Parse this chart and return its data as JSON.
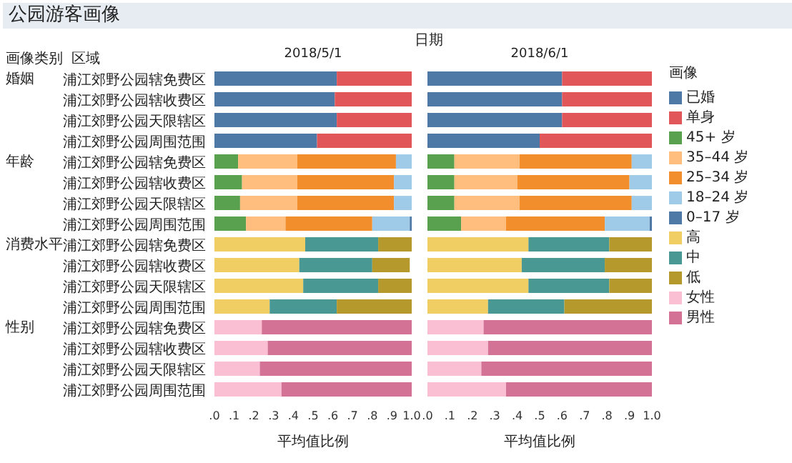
{
  "chart_data": [
    {
      "type": "bar",
      "orientation": "horizontal",
      "stacked": true,
      "title": "公园游客画像",
      "subtitle": "2018/5/1",
      "xlabel": "平均值比例",
      "annotations": [
        "日期",
        "画像类别",
        "区域",
        "婚姻",
        "年龄",
        "消费水平",
        "性别"
      ],
      "categories": [
        "浦江郊野公园辖免费区",
        "浦江郊野公园辖收费区",
        "浦江郊野公园天限辖区",
        "浦江郊野公园周围范围",
        "浦江郊野公园辖免费区",
        "浦江郊野公园辖收费区",
        "浦江郊野公园天限辖区",
        "浦江郊野公园周围范围",
        "浦江郊野公园辖免费区",
        "浦江郊野公园辖收费区",
        "浦江郊野公园天限辖区",
        "浦江郊野公园周围范围",
        "浦江郊野公园辖免费区",
        "浦江郊野公园辖收费区",
        "浦江郊野公园天限辖区",
        "浦江郊野公园周围范围"
      ],
      "xlim": [
        0,
        1
      ],
      "xticks": [
        {
          "value": 0,
          "label": ".0"
        },
        {
          "value": 0.1,
          "label": ".1"
        },
        {
          "value": 0.2,
          "label": ".2"
        },
        {
          "value": 0.3,
          "label": ".3"
        },
        {
          "value": 0.4,
          "label": ".4"
        },
        {
          "value": 0.5,
          "label": ".5"
        },
        {
          "value": 0.6,
          "label": ".6"
        },
        {
          "value": 0.7,
          "label": ".7"
        },
        {
          "value": 0.8,
          "label": ".8"
        },
        {
          "value": 0.9,
          "label": ".9"
        },
        {
          "value": 1,
          "label": "1.0"
        }
      ],
      "series": [
        {
          "color": "#4e79a7",
          "values": [
            0.62,
            0.61,
            0.62,
            0.52,
            null,
            null,
            null,
            null,
            null,
            null,
            null,
            null,
            null,
            null,
            null,
            null
          ]
        },
        {
          "color": "#e15759",
          "values": [
            0.38,
            0.39,
            0.38,
            0.48,
            null,
            null,
            null,
            null,
            null,
            null,
            null,
            null,
            null,
            null,
            null,
            null
          ]
        },
        {
          "color": "#59a14f",
          "values": [
            null,
            null,
            null,
            null,
            0.12,
            0.14,
            0.13,
            0.16,
            null,
            null,
            null,
            null,
            null,
            null,
            null,
            null
          ]
        },
        {
          "color": "#ffbe7d",
          "values": [
            null,
            null,
            null,
            null,
            0.3,
            0.28,
            0.29,
            0.2,
            null,
            null,
            null,
            null,
            null,
            null,
            null,
            null
          ]
        },
        {
          "color": "#f28e2b",
          "values": [
            null,
            null,
            null,
            null,
            0.5,
            0.49,
            0.49,
            0.44,
            null,
            null,
            null,
            null,
            null,
            null,
            null,
            null
          ]
        },
        {
          "color": "#a0cbe8",
          "values": [
            null,
            null,
            null,
            null,
            0.08,
            0.09,
            0.09,
            0.19,
            null,
            null,
            null,
            null,
            null,
            null,
            null,
            null
          ]
        },
        {
          "color": "#4e79a7",
          "values": [
            null,
            null,
            null,
            null,
            null,
            null,
            null,
            0.01,
            null,
            null,
            null,
            null,
            null,
            null,
            null,
            null
          ]
        },
        {
          "color": "#f1ce63",
          "values": [
            null,
            null,
            null,
            null,
            null,
            null,
            null,
            null,
            0.46,
            0.43,
            0.45,
            0.28,
            null,
            null,
            null,
            null
          ]
        },
        {
          "color": "#499894",
          "values": [
            null,
            null,
            null,
            null,
            null,
            null,
            null,
            null,
            0.37,
            0.37,
            0.38,
            0.34,
            null,
            null,
            null,
            null
          ]
        },
        {
          "color": "#b6992d",
          "values": [
            null,
            null,
            null,
            null,
            null,
            null,
            null,
            null,
            0.17,
            0.19,
            0.17,
            0.38,
            null,
            null,
            null,
            null
          ]
        },
        {
          "color": "#fabfd2",
          "values": [
            null,
            null,
            null,
            null,
            null,
            null,
            null,
            null,
            null,
            null,
            null,
            null,
            0.24,
            0.27,
            0.23,
            0.34
          ]
        },
        {
          "color": "#d37295",
          "values": [
            null,
            null,
            null,
            null,
            null,
            null,
            null,
            null,
            null,
            null,
            null,
            null,
            0.76,
            0.73,
            0.77,
            0.66
          ]
        }
      ]
    },
    {
      "type": "bar",
      "orientation": "horizontal",
      "stacked": true,
      "subtitle": "2018/6/1",
      "xlabel": "平均值比例",
      "tick_labels": "x",
      "legend": "right",
      "legend_title": "画像",
      "categories": [
        null,
        null,
        null,
        null,
        null,
        null,
        null,
        null,
        null,
        null,
        null,
        null,
        null,
        null,
        null,
        null
      ],
      "xlim": [
        0,
        1
      ],
      "xticks": [
        {
          "value": 0,
          "label": ".0"
        },
        {
          "value": 0.1,
          "label": ".1"
        },
        {
          "value": 0.2,
          "label": ".2"
        },
        {
          "value": 0.3,
          "label": ".3"
        },
        {
          "value": 0.4,
          "label": ".4"
        },
        {
          "value": 0.5,
          "label": ".5"
        },
        {
          "value": 0.6,
          "label": ".6"
        },
        {
          "value": 0.7,
          "label": ".7"
        },
        {
          "value": 0.8,
          "label": ".8"
        },
        {
          "value": 0.9,
          "label": ".9"
        },
        {
          "value": 1,
          "label": "1.0"
        }
      ],
      "series": [
        {
          "name": "已婚",
          "color": "#4e79a7",
          "values": [
            0.6,
            0.6,
            0.6,
            0.5,
            null,
            null,
            null,
            null,
            null,
            null,
            null,
            null,
            null,
            null,
            null,
            null
          ]
        },
        {
          "name": "单身",
          "color": "#e15759",
          "values": [
            0.4,
            0.4,
            0.4,
            0.5,
            null,
            null,
            null,
            null,
            null,
            null,
            null,
            null,
            null,
            null,
            null,
            null
          ]
        },
        {
          "name": "45+ 岁",
          "color": "#59a14f",
          "values": [
            null,
            null,
            null,
            null,
            0.12,
            0.12,
            0.12,
            0.15,
            null,
            null,
            null,
            null,
            null,
            null,
            null,
            null
          ]
        },
        {
          "name": "35–44 岁",
          "color": "#ffbe7d",
          "values": [
            null,
            null,
            null,
            null,
            0.29,
            0.28,
            0.29,
            0.2,
            null,
            null,
            null,
            null,
            null,
            null,
            null,
            null
          ]
        },
        {
          "name": "25–34 岁",
          "color": "#f28e2b",
          "values": [
            null,
            null,
            null,
            null,
            0.5,
            0.5,
            0.5,
            0.44,
            null,
            null,
            null,
            null,
            null,
            null,
            null,
            null
          ]
        },
        {
          "name": "18–24 岁",
          "color": "#a0cbe8",
          "values": [
            null,
            null,
            null,
            null,
            0.09,
            0.1,
            0.09,
            0.2,
            null,
            null,
            null,
            null,
            null,
            null,
            null,
            null
          ]
        },
        {
          "name": "0–17 岁",
          "color": "#4e79a7",
          "values": [
            null,
            null,
            null,
            null,
            null,
            null,
            null,
            0.01,
            null,
            null,
            null,
            null,
            null,
            null,
            null,
            null
          ]
        },
        {
          "name": "高",
          "color": "#f1ce63",
          "values": [
            null,
            null,
            null,
            null,
            null,
            null,
            null,
            null,
            0.45,
            0.42,
            0.45,
            0.27,
            null,
            null,
            null,
            null
          ]
        },
        {
          "name": "中",
          "color": "#499894",
          "values": [
            null,
            null,
            null,
            null,
            null,
            null,
            null,
            null,
            0.36,
            0.37,
            0.36,
            0.34,
            null,
            null,
            null,
            null
          ]
        },
        {
          "name": "低",
          "color": "#b6992d",
          "values": [
            null,
            null,
            null,
            null,
            null,
            null,
            null,
            null,
            0.19,
            0.21,
            0.19,
            0.39,
            null,
            null,
            null,
            null
          ]
        },
        {
          "name": "女性",
          "color": "#fabfd2",
          "values": [
            null,
            null,
            null,
            null,
            null,
            null,
            null,
            null,
            null,
            null,
            null,
            null,
            0.25,
            0.27,
            0.24,
            0.35
          ]
        },
        {
          "name": "男性",
          "color": "#d37295",
          "values": [
            null,
            null,
            null,
            null,
            null,
            null,
            null,
            null,
            null,
            null,
            null,
            null,
            0.75,
            0.73,
            0.76,
            0.65
          ]
        }
      ]
    }
  ]
}
